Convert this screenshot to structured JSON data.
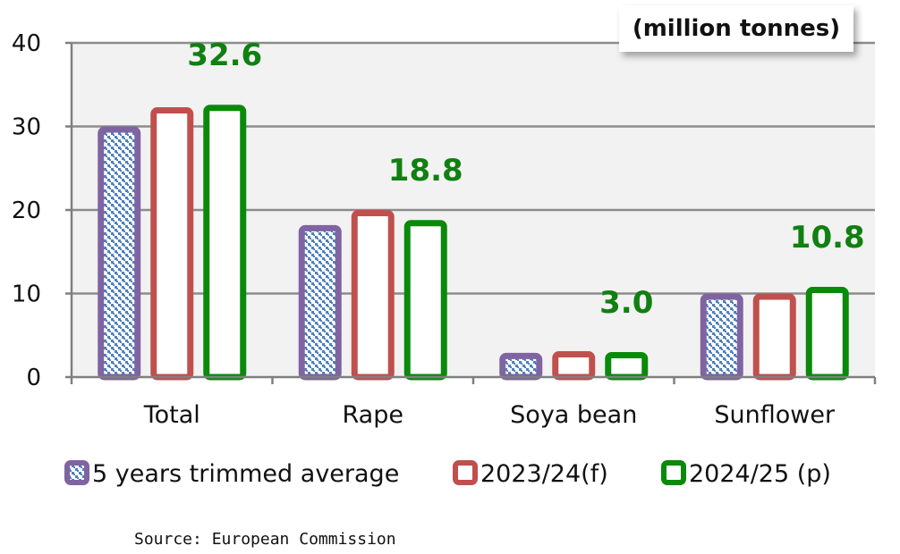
{
  "chart_data": {
    "type": "bar",
    "categories": [
      "Total",
      "Rape",
      "Soya bean",
      "Sunflower"
    ],
    "series": [
      {
        "name": "5 years trimmed average",
        "values": [
          30.0,
          18.2,
          2.9,
          10.0
        ],
        "color": "#8064A2",
        "fill": "pattern"
      },
      {
        "name": "2023/24(f)",
        "values": [
          32.3,
          20.0,
          3.1,
          10.0
        ],
        "color": "#C0504D",
        "fill": "white"
      },
      {
        "name": "2024/25 (p)",
        "values": [
          32.6,
          18.8,
          3.0,
          10.8
        ],
        "color": "#0A8A0A",
        "fill": "white"
      }
    ],
    "data_labels": [
      "32.6",
      "18.8",
      "3.0",
      "10.8"
    ],
    "y_ticks": [
      "0",
      "10",
      "20",
      "30",
      "40"
    ],
    "ylim": [
      0,
      40
    ],
    "grid": true,
    "legend_position": "bottom",
    "unit_label": "(million tonnes)",
    "source": "Source: European Commission",
    "colors": {
      "plot_bg": "#F2F2F2",
      "grid": "#8C8C8C",
      "axis": "#7F7F7F",
      "pattern_fill": "#4F81BD",
      "label_green": "#108010"
    }
  }
}
